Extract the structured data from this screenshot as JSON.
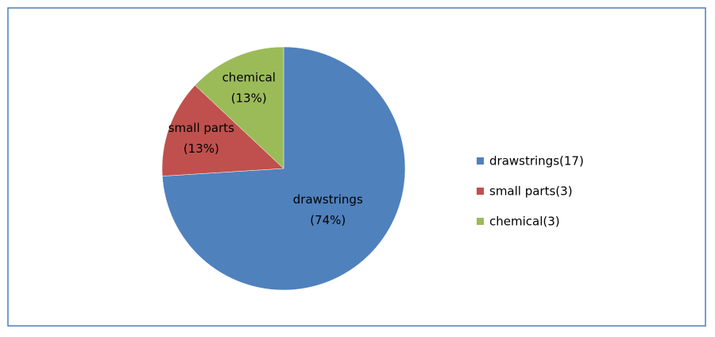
{
  "chart_data": {
    "type": "pie",
    "categories": [
      "drawstrings",
      "small parts",
      "chemical"
    ],
    "values": [
      74,
      13,
      13
    ],
    "value_labels": [
      "(74%)",
      "(13%)",
      "(13%)"
    ],
    "colors": [
      "#4f81bd",
      "#c0504d",
      "#9bbb59"
    ],
    "legend": [
      {
        "value": 17,
        "label": "drawstrings(17)"
      },
      {
        "value": 3,
        "label": "small parts(3)"
      },
      {
        "value": 3,
        "label": "chemical(3)"
      }
    ],
    "legend_position": "right"
  }
}
